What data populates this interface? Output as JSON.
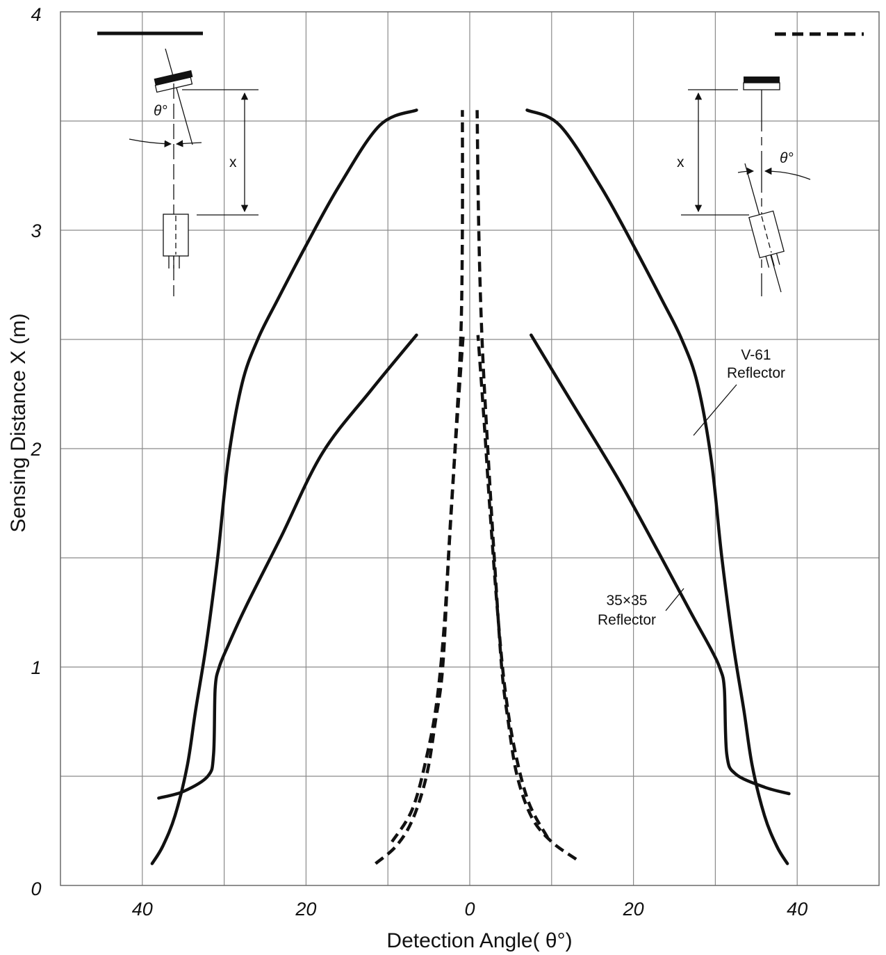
{
  "chart_data": {
    "type": "line",
    "title": "",
    "xlabel": "Detection Angle( θ°)",
    "ylabel": "Sensing Distance X (m)",
    "xlim": [
      -50,
      50
    ],
    "ylim": [
      0,
      4
    ],
    "x_tick_values": [
      -40,
      -20,
      0,
      20,
      40
    ],
    "x_tick_labels": [
      "40",
      "20",
      "0",
      "20",
      "40"
    ],
    "y_tick_values": [
      0,
      1,
      2,
      3,
      4
    ],
    "y_tick_labels": [
      "0",
      "1",
      "2",
      "3",
      "4"
    ],
    "grid": true,
    "legend": [
      {
        "style": "solid",
        "position": "top-left"
      },
      {
        "style": "dashed",
        "position": "top-right"
      }
    ],
    "annotations": [
      {
        "text": "V-61\nReflector"
      },
      {
        "text": "35×35\nReflector"
      }
    ],
    "series": [
      {
        "style": "solid",
        "points": [
          [
            -38.8,
            0.1
          ],
          [
            -37.5,
            0.18
          ],
          [
            -36,
            0.32
          ],
          [
            -34.5,
            0.55
          ],
          [
            -33.5,
            0.8
          ],
          [
            -32.2,
            1.1
          ],
          [
            -30.8,
            1.5
          ],
          [
            -29.5,
            1.95
          ],
          [
            -27.8,
            2.3
          ],
          [
            -25.9,
            2.5
          ],
          [
            -23.5,
            2.68
          ],
          [
            -20,
            2.93
          ],
          [
            -16,
            3.2
          ],
          [
            -11,
            3.48
          ],
          [
            -6.5,
            3.55
          ]
        ]
      },
      {
        "style": "solid",
        "points": [
          [
            38.8,
            0.1
          ],
          [
            37.5,
            0.18
          ],
          [
            36,
            0.32
          ],
          [
            34.5,
            0.55
          ],
          [
            33.5,
            0.8
          ],
          [
            32.2,
            1.1
          ],
          [
            30.8,
            1.5
          ],
          [
            29.5,
            1.95
          ],
          [
            27.8,
            2.3
          ],
          [
            25.9,
            2.5
          ],
          [
            23.5,
            2.68
          ],
          [
            20,
            2.93
          ],
          [
            16,
            3.2
          ],
          [
            11,
            3.48
          ],
          [
            7,
            3.55
          ]
        ]
      },
      {
        "style": "solid",
        "points": [
          [
            -38,
            0.4
          ],
          [
            -35,
            0.43
          ],
          [
            -32,
            0.5
          ],
          [
            -31.3,
            0.6
          ],
          [
            -31.1,
            0.9
          ],
          [
            -30.6,
            1.0
          ],
          [
            -29.5,
            1.1
          ],
          [
            -27.3,
            1.28
          ],
          [
            -23,
            1.6
          ],
          [
            -18,
            1.98
          ],
          [
            -12,
            2.27
          ],
          [
            -6.5,
            2.52
          ]
        ]
      },
      {
        "style": "solid",
        "points": [
          [
            39,
            0.42
          ],
          [
            36,
            0.45
          ],
          [
            32.5,
            0.51
          ],
          [
            31.4,
            0.6
          ],
          [
            31.1,
            0.9
          ],
          [
            30.6,
            0.99
          ],
          [
            29.5,
            1.08
          ],
          [
            27,
            1.25
          ],
          [
            23,
            1.53
          ],
          [
            18,
            1.87
          ],
          [
            12,
            2.24
          ],
          [
            7.5,
            2.52
          ]
        ]
      },
      {
        "style": "dashed",
        "points": [
          [
            -11.5,
            0.1
          ],
          [
            -9,
            0.18
          ],
          [
            -7,
            0.3
          ],
          [
            -5.3,
            0.5
          ],
          [
            -4.2,
            0.75
          ],
          [
            -3.3,
            1.0
          ],
          [
            -2.6,
            1.5
          ],
          [
            -1.8,
            2.0
          ],
          [
            -1.1,
            2.5
          ],
          [
            -0.9,
            3.0
          ],
          [
            -0.9,
            3.55
          ]
        ]
      },
      {
        "style": "dashed",
        "points": [
          [
            13,
            0.12
          ],
          [
            10,
            0.2
          ],
          [
            7.6,
            0.31
          ],
          [
            5.8,
            0.5
          ],
          [
            4.7,
            0.75
          ],
          [
            3.9,
            1.0
          ],
          [
            3,
            1.5
          ],
          [
            2.2,
            2.0
          ],
          [
            1.5,
            2.5
          ],
          [
            1.1,
            3.0
          ],
          [
            0.9,
            3.55
          ]
        ]
      },
      {
        "style": "dashed",
        "points": [
          [
            -9.5,
            0.2
          ],
          [
            -7,
            0.35
          ],
          [
            -5.2,
            0.6
          ],
          [
            -4,
            0.85
          ],
          [
            -3.1,
            1.2
          ],
          [
            -2.3,
            1.7
          ],
          [
            -1.6,
            2.1
          ],
          [
            -0.8,
            2.52
          ]
        ]
      },
      {
        "style": "dashed",
        "points": [
          [
            9.5,
            0.22
          ],
          [
            7.2,
            0.38
          ],
          [
            5.5,
            0.62
          ],
          [
            4.3,
            0.9
          ],
          [
            3.4,
            1.25
          ],
          [
            2.5,
            1.7
          ],
          [
            1.8,
            2.1
          ],
          [
            1,
            2.52
          ]
        ]
      }
    ]
  }
}
